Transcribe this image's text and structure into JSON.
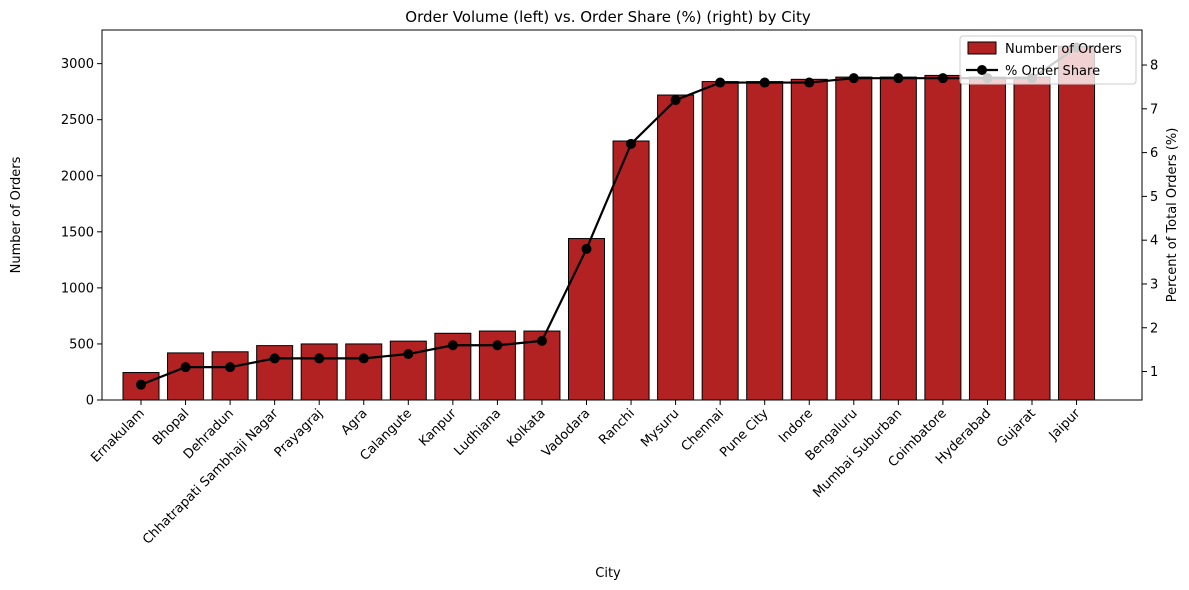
{
  "chart_data": {
    "type": "bar",
    "title": "Order Volume (left) vs. Order Share (%) (right) by City",
    "xlabel": "City",
    "ylabel": "Number of Orders",
    "y2label": "Percent of Total Orders (%)",
    "ylim": [
      0,
      3300
    ],
    "y2lim": [
      0.35,
      8.8
    ],
    "yticks": [
      "0",
      "500",
      "1000",
      "1500",
      "2000",
      "2500",
      "3000"
    ],
    "y2ticks": [
      "1",
      "2",
      "3",
      "4",
      "5",
      "6",
      "7",
      "8"
    ],
    "legend_position": "top-right",
    "grid": false,
    "categories": [
      "Ernakulam",
      "Bhopal",
      "Dehradun",
      "Chhatrapati Sambhaji Nagar",
      "Prayagraj",
      "Agra",
      "Calangute",
      "Kanpur",
      "Ludhiana",
      "Kolkata",
      "Vadodara",
      "Ranchi",
      "Mysuru",
      "Chennai",
      "Pune City",
      "Indore",
      "Bengaluru",
      "Mumbai Suburban",
      "Coimbatore",
      "Hyderabad",
      "Gujarat",
      "Jaipur"
    ],
    "series": [
      {
        "name": "Number of Orders",
        "type": "bar",
        "axis": "left",
        "color": "#b22222",
        "values": [
          245,
          420,
          430,
          485,
          500,
          500,
          525,
          595,
          615,
          615,
          1440,
          2310,
          2720,
          2840,
          2840,
          2860,
          2880,
          2880,
          2895,
          2880,
          2880,
          3155
        ]
      },
      {
        "name": "% Order Share",
        "type": "line",
        "axis": "right",
        "color": "#000000",
        "values": [
          0.7,
          1.1,
          1.1,
          1.3,
          1.3,
          1.3,
          1.4,
          1.6,
          1.6,
          1.7,
          3.8,
          6.2,
          7.2,
          7.6,
          7.6,
          7.6,
          7.7,
          7.7,
          7.7,
          7.7,
          7.7,
          8.4
        ]
      }
    ]
  }
}
